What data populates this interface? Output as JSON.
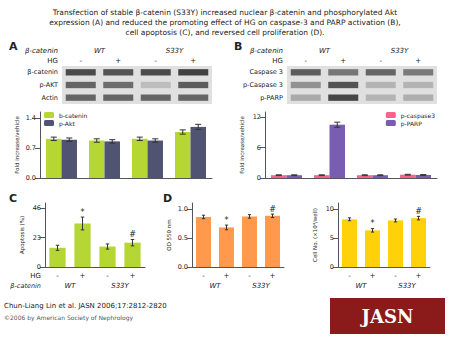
{
  "title": "Transfection of stable β-catenin (S33Y) increased nuclear β-catenin and phosphorylated Akt\nexpression (A) and reduced the promoting effect of HG on caspase-3 and PARP activation (B),\ncell apoptosis (C), and reversed cell proliferation (D).",
  "annotations": [
    {
      "text": "Chun-Liang Lin et al. JASN 2006;17:2812-2820"
    },
    {
      "text": "©2006 by American Society of Nephrology"
    },
    {
      "text": "JASN",
      "color": "#8b1a1a"
    }
  ],
  "chart_data": [
    {
      "type": "heatmap",
      "title": "A",
      "xlabel": "HG",
      "group_title": "β-catenin",
      "categories": [
        "-",
        "+",
        "-",
        "+"
      ],
      "groups": [
        "WT",
        "S33Y"
      ],
      "rows": [
        "β-catenin",
        "p-AKT",
        "Actin"
      ],
      "cells": [
        [
          0.85,
          0.8,
          0.85,
          0.9
        ],
        [
          0.7,
          0.65,
          0.2,
          0.75
        ],
        [
          0.7,
          0.7,
          0.7,
          0.7
        ]
      ],
      "color": "#303030"
    },
    {
      "type": "bar",
      "categories": [
        null,
        null,
        null,
        null
      ],
      "ylabel": "Fold increase/vehicle",
      "ylim": [
        0.0,
        1.55
      ],
      "yticks": [
        {
          "value": 0.0,
          "label": "0.0"
        },
        0.7,
        1.4
      ],
      "grid": false,
      "legend": "upper left",
      "tick_labels": "y",
      "series": [
        {
          "name": "b-catenin",
          "values": [
            0.92,
            0.88,
            0.92,
            1.08
          ],
          "errors": [
            0.04,
            0.04,
            0.04,
            0.05
          ]
        },
        {
          "name": "p-Akt",
          "values": [
            0.9,
            0.86,
            0.88,
            1.2
          ],
          "errors": [
            0.04,
            0.04,
            0.04,
            0.06
          ]
        }
      ]
    },
    {
      "type": "heatmap",
      "title": "B",
      "xlabel": "HG",
      "group_title": "β-catenin",
      "categories": [
        "-",
        "+",
        "-",
        "+"
      ],
      "groups": [
        "WT",
        "S33Y"
      ],
      "rows": [
        "Caspase 3",
        "p-Caspase 3",
        "p-PARP"
      ],
      "cells": [
        [
          0.75,
          0.6,
          0.7,
          0.58
        ],
        [
          0.45,
          0.8,
          0.25,
          0.25
        ],
        [
          0.3,
          0.88,
          0.25,
          0.28
        ]
      ],
      "color": "#303030"
    },
    {
      "type": "bar",
      "categories": [
        null,
        null,
        null,
        null
      ],
      "ylabel": "Fold increase/vehicle",
      "ylim": [
        0,
        13
      ],
      "yticks": [
        0,
        6,
        12
      ],
      "grid": false,
      "legend": "upper right",
      "tick_labels": "y",
      "series": [
        {
          "name": "p-caspase3",
          "values": [
            0.55,
            0.55,
            0.55,
            0.65
          ],
          "errors": [
            0.08,
            0.08,
            0.08,
            0.08
          ]
        },
        {
          "name": "p-PARP",
          "values": [
            0.55,
            10.5,
            0.55,
            0.6
          ],
          "errors": [
            0.08,
            0.5,
            0.08,
            0.08
          ]
        }
      ]
    },
    {
      "type": "bar",
      "title": "C",
      "xlabel": "HG",
      "group_title": "β-catenin",
      "categories": [
        "-",
        "+",
        "-",
        "+"
      ],
      "groups": [
        "WT",
        "S33Y"
      ],
      "values": [
        15,
        34,
        16,
        19
      ],
      "errors": [
        2.0,
        5.0,
        2.0,
        2.5
      ],
      "annotations": [
        null,
        "*",
        null,
        "#"
      ],
      "ylabel": "Apoptosis (%)",
      "ylim": [
        0,
        50
      ],
      "yticks": [
        0,
        23,
        46
      ],
      "grid": false
    },
    {
      "type": "bar",
      "title": "D",
      "categories": [
        "-",
        "+",
        "-",
        "+"
      ],
      "groups": [
        "WT",
        "S33Y"
      ],
      "values": [
        0.86,
        0.68,
        0.87,
        0.88
      ],
      "errors": [
        0.03,
        0.04,
        0.03,
        0.03
      ],
      "annotations": [
        null,
        "*",
        null,
        "#"
      ],
      "ylabel": "OD 550 nm",
      "ylim": [
        0.0,
        1.1
      ],
      "yticks": [
        {
          "value": 0.0,
          "label": "0.0"
        },
        0.5,
        {
          "value": 1.0,
          "label": "1.0"
        }
      ],
      "grid": false
    },
    {
      "type": "bar",
      "categories": [
        "-",
        "+",
        "-",
        "+"
      ],
      "groups": [
        "WT",
        "S33Y"
      ],
      "values": [
        8.2,
        6.3,
        8.0,
        8.4
      ],
      "errors": [
        0.25,
        0.3,
        0.25,
        0.3
      ],
      "annotations": [
        null,
        "*",
        null,
        "#"
      ],
      "ylabel": "Cell No. (×10⁴/well)",
      "ylim": [
        0,
        11
      ],
      "yticks": [
        0,
        5,
        10
      ],
      "grid": false
    }
  ]
}
